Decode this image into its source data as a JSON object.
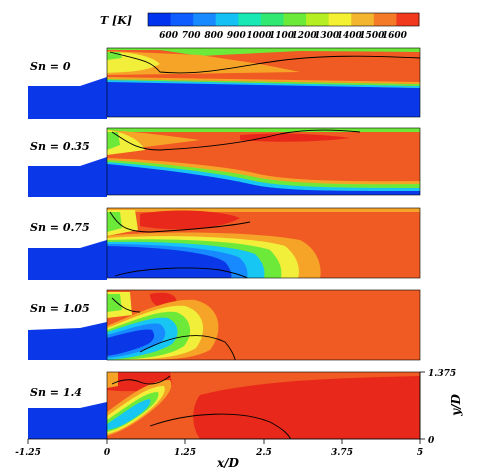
{
  "colorbar": {
    "title": "T [K]",
    "ticks": [
      "600",
      "700",
      "800",
      "900",
      "1000",
      "1100",
      "1200",
      "1300",
      "1400",
      "1500",
      "1600"
    ],
    "colors": [
      "#0033ee",
      "#0f5cff",
      "#178aff",
      "#15c0f5",
      "#19e8b5",
      "#31e873",
      "#6cea3a",
      "#b5ee22",
      "#f4f032",
      "#f4b52e",
      "#f57a27",
      "#f0391d"
    ]
  },
  "panels": [
    {
      "label": "Sn = 0"
    },
    {
      "label": "Sn = 0.35"
    },
    {
      "label": "Sn = 0.75"
    },
    {
      "label": "Sn = 1.05"
    },
    {
      "label": "Sn = 1.4"
    }
  ],
  "x_axis": {
    "label": "x/D",
    "ticks": [
      "-1.25",
      "0",
      "1.25",
      "2.5",
      "3.75",
      "5"
    ]
  },
  "y_axis": {
    "label": "y/D",
    "ticks": [
      "0",
      "1.375"
    ]
  },
  "colors": {
    "hot": "#f05a23",
    "hotter": "#e8281a",
    "orange": "#f6a428",
    "yellow": "#f1ef3a",
    "green": "#6dea39",
    "cyan": "#18c6f4",
    "cold": "#0a37e8"
  }
}
